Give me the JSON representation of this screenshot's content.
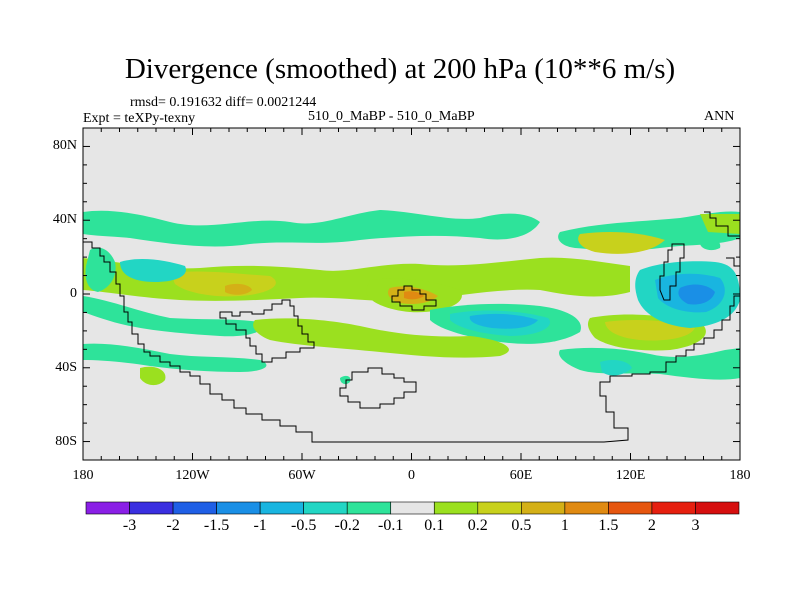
{
  "title": "Divergence (smoothed) at 200 hPa (10**6 m/s)",
  "stats": "rmsd= 0.191632 diff= 0.0021244",
  "expt": "Expt = teXPy-texny",
  "subtitle": "510_0_MaBP - 510_0_MaBP",
  "season": "ANN",
  "lat_ticks": [
    "80N",
    "40N",
    "0",
    "40S",
    "80S"
  ],
  "lon_ticks": [
    "180",
    "120W",
    "60W",
    "0",
    "60E",
    "120E",
    "180"
  ],
  "colorbar": {
    "labels": [
      "-3",
      "-2",
      "-1.5",
      "-1",
      "-0.5",
      "-0.2",
      "-0.1",
      "0.1",
      "0.2",
      "0.5",
      "1",
      "1.5",
      "2",
      "3"
    ],
    "colors": [
      "#8a1fe6",
      "#3a2fe0",
      "#1f5fe6",
      "#1a8fe6",
      "#19b5e0",
      "#22d6c4",
      "#2ee39a",
      "#e6e6e6",
      "#9be01f",
      "#c8d11c",
      "#d4b017",
      "#e08a12",
      "#e6560f",
      "#e61f0f",
      "#d60f0f"
    ]
  },
  "field_colors": {
    "background": "#e6e6e6",
    "weak_negative": "#2ee39a",
    "negative": "#22d6c4",
    "strong_negative": "#19b5e0",
    "stronger_negative": "#1a8fe6",
    "weak_positive": "#9be01f",
    "positive": "#c8d11c",
    "strong_positive": "#d4b017",
    "stronger_positive": "#e08a12"
  }
}
